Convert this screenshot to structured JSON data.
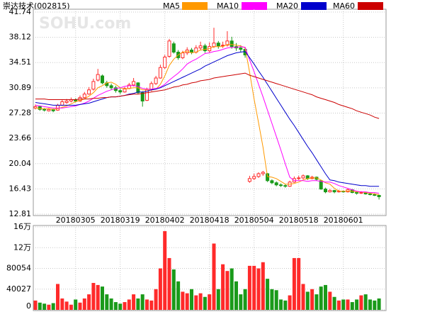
{
  "chart_data": {
    "type": "candlestick",
    "title": "崇达技术(002815)",
    "watermark": "SOHU.com",
    "up_color": "#ff2a2a",
    "down_color": "#1a9a1a",
    "grid": true,
    "categories": [
      null,
      null,
      null,
      null,
      null,
      null,
      null,
      null,
      null,
      "20180305",
      null,
      null,
      null,
      null,
      null,
      null,
      null,
      null,
      null,
      "20180319",
      null,
      null,
      null,
      null,
      null,
      null,
      null,
      null,
      null,
      "20180402",
      null,
      null,
      null,
      null,
      null,
      null,
      null,
      null,
      null,
      "20180418",
      null,
      null,
      null,
      null,
      null,
      null,
      null,
      null,
      null,
      "20180504",
      null,
      null,
      null,
      null,
      null,
      null,
      null,
      null,
      null,
      "20180518",
      null,
      null,
      null,
      null,
      null,
      null,
      null,
      null,
      null,
      "20180601",
      null,
      null,
      null,
      null,
      null,
      null,
      null,
      null
    ],
    "ylim": [
      12.81,
      41.74
    ],
    "yticks": [
      41.74,
      38.12,
      34.51,
      30.89,
      27.28,
      23.66,
      20.04,
      16.43,
      12.81
    ],
    "candles": [
      [
        28.0,
        28.5,
        27.8,
        28.2
      ],
      [
        28.2,
        28.3,
        27.6,
        27.8
      ],
      [
        27.8,
        28.0,
        27.5,
        27.7
      ],
      [
        27.6,
        28.0,
        27.5,
        27.8
      ],
      [
        27.8,
        27.9,
        27.4,
        27.6
      ],
      [
        27.7,
        28.6,
        27.6,
        28.4
      ],
      [
        28.4,
        29.2,
        28.3,
        28.9
      ],
      [
        28.8,
        29.3,
        28.6,
        29.0
      ],
      [
        29.0,
        29.5,
        28.8,
        29.2
      ],
      [
        29.2,
        29.4,
        28.8,
        29.0
      ],
      [
        29.0,
        29.8,
        28.9,
        29.5
      ],
      [
        29.5,
        30.3,
        29.4,
        30.0
      ],
      [
        30.0,
        31.0,
        29.9,
        30.6
      ],
      [
        30.7,
        32.2,
        30.5,
        31.8
      ],
      [
        32.0,
        33.6,
        31.8,
        32.8
      ],
      [
        32.6,
        32.8,
        31.4,
        31.6
      ],
      [
        31.6,
        31.9,
        30.9,
        31.2
      ],
      [
        31.2,
        31.5,
        30.6,
        30.9
      ],
      [
        30.9,
        31.2,
        30.2,
        30.5
      ],
      [
        30.5,
        30.8,
        30.0,
        30.3
      ],
      [
        30.3,
        31.0,
        30.2,
        30.8
      ],
      [
        30.8,
        31.6,
        30.7,
        31.3
      ],
      [
        31.3,
        32.3,
        31.1,
        31.8
      ],
      [
        31.6,
        31.7,
        30.0,
        30.2
      ],
      [
        30.2,
        30.4,
        28.2,
        29.0
      ],
      [
        29.1,
        30.9,
        29.0,
        30.6
      ],
      [
        30.6,
        31.8,
        30.4,
        31.5
      ],
      [
        31.5,
        32.6,
        31.3,
        32.3
      ],
      [
        32.3,
        34.2,
        32.2,
        33.8
      ],
      [
        33.8,
        35.6,
        33.6,
        35.3
      ],
      [
        35.4,
        37.9,
        35.2,
        37.6
      ],
      [
        37.2,
        37.5,
        35.8,
        36.0
      ],
      [
        36.0,
        36.3,
        34.9,
        35.2
      ],
      [
        35.2,
        36.2,
        35.0,
        35.9
      ],
      [
        35.9,
        36.7,
        35.6,
        36.3
      ],
      [
        36.3,
        36.6,
        35.7,
        36.0
      ],
      [
        36.0,
        37.0,
        35.8,
        36.6
      ],
      [
        36.6,
        37.5,
        36.3,
        36.9
      ],
      [
        36.9,
        37.2,
        35.9,
        36.2
      ],
      [
        36.2,
        37.4,
        36.0,
        36.8
      ],
      [
        36.8,
        39.5,
        36.6,
        37.3
      ],
      [
        37.3,
        37.6,
        36.5,
        36.9
      ],
      [
        36.9,
        37.5,
        36.6,
        37.0
      ],
      [
        37.0,
        39.0,
        36.8,
        37.6
      ],
      [
        37.6,
        38.2,
        36.5,
        36.8
      ],
      [
        36.8,
        37.3,
        36.2,
        36.6
      ],
      [
        36.6,
        37.0,
        36.0,
        36.4
      ],
      [
        36.4,
        36.6,
        35.2,
        35.6
      ],
      [
        17.5,
        18.3,
        17.3,
        17.9
      ],
      [
        17.9,
        18.6,
        17.7,
        18.2
      ],
      [
        18.2,
        18.8,
        18.0,
        18.6
      ],
      [
        18.6,
        19.0,
        18.3,
        18.8
      ],
      [
        18.6,
        18.7,
        17.4,
        17.6
      ],
      [
        17.6,
        17.8,
        17.1,
        17.3
      ],
      [
        17.3,
        17.5,
        16.8,
        17.0
      ],
      [
        17.0,
        17.2,
        16.7,
        16.9
      ],
      [
        16.9,
        17.1,
        16.6,
        16.8
      ],
      [
        16.8,
        17.6,
        16.7,
        17.4
      ],
      [
        17.4,
        18.2,
        17.3,
        17.9
      ],
      [
        17.9,
        18.3,
        17.7,
        18.0
      ],
      [
        18.0,
        18.5,
        17.8,
        18.3
      ],
      [
        18.3,
        18.4,
        17.7,
        17.9
      ],
      [
        17.9,
        18.3,
        17.8,
        18.1
      ],
      [
        18.1,
        18.2,
        17.6,
        17.8
      ],
      [
        17.6,
        17.7,
        16.3,
        16.4
      ],
      [
        16.4,
        16.6,
        15.8,
        16.0
      ],
      [
        16.0,
        16.4,
        15.9,
        16.2
      ],
      [
        16.2,
        16.3,
        15.8,
        16.0
      ],
      [
        16.0,
        16.3,
        15.9,
        16.1
      ],
      [
        16.1,
        16.2,
        15.9,
        16.0
      ],
      [
        16.0,
        16.5,
        15.9,
        16.3
      ],
      [
        16.3,
        16.4,
        15.8,
        15.9
      ],
      [
        15.9,
        16.0,
        15.6,
        15.8
      ],
      [
        15.8,
        16.1,
        15.7,
        15.9
      ],
      [
        15.9,
        16.0,
        15.6,
        15.7
      ],
      [
        15.7,
        15.9,
        15.5,
        15.6
      ],
      [
        15.6,
        15.8,
        15.4,
        15.5
      ],
      [
        15.5,
        15.6,
        14.9,
        15.3
      ]
    ],
    "series": [
      {
        "name": "MA5",
        "color": "#ff9900",
        "values": [
          28.0,
          27.9,
          27.9,
          27.9,
          27.8,
          27.9,
          28.1,
          28.3,
          28.6,
          28.9,
          29.1,
          29.3,
          29.7,
          30.2,
          30.9,
          31.2,
          31.6,
          31.7,
          31.4,
          30.9,
          30.7,
          30.8,
          30.9,
          30.9,
          30.6,
          30.6,
          30.6,
          30.7,
          31.4,
          32.6,
          34.1,
          35.0,
          35.6,
          36.0,
          36.1,
          35.9,
          36.0,
          36.3,
          36.4,
          36.5,
          36.8,
          36.8,
          36.8,
          37.1,
          37.1,
          37.0,
          36.9,
          36.6,
          33.1,
          29.3,
          25.9,
          22.4,
          18.2,
          18.1,
          17.9,
          17.5,
          17.1,
          17.1,
          17.2,
          17.4,
          17.7,
          17.9,
          18.0,
          18.0,
          17.7,
          17.3,
          17.1,
          16.5,
          16.1,
          16.1,
          16.1,
          16.1,
          16.0,
          16.0,
          15.9,
          15.8,
          15.7,
          15.6
        ]
      },
      {
        "name": "MA10",
        "color": "#ff00ff",
        "values": [
          28.4,
          28.3,
          28.2,
          28.1,
          28.0,
          28.0,
          28.0,
          28.1,
          28.2,
          28.3,
          28.5,
          28.7,
          29.0,
          29.4,
          29.8,
          30.1,
          30.4,
          30.6,
          30.8,
          30.9,
          31.1,
          31.2,
          31.2,
          31.1,
          30.8,
          30.7,
          30.7,
          30.8,
          31.0,
          31.4,
          32.0,
          32.5,
          33.0,
          33.6,
          34.3,
          34.7,
          35.0,
          35.4,
          35.8,
          35.9,
          36.1,
          36.2,
          36.4,
          36.6,
          36.7,
          36.7,
          36.8,
          36.7,
          34.9,
          33.2,
          31.4,
          29.6,
          27.7,
          25.8,
          23.9,
          22.0,
          20.0,
          18.1,
          17.6,
          17.6,
          17.6,
          17.5,
          17.6,
          17.6,
          17.5,
          17.4,
          17.4,
          17.2,
          16.9,
          16.7,
          16.5,
          16.3,
          16.1,
          16.0,
          16.0,
          15.9,
          15.9,
          15.8
        ]
      },
      {
        "name": "MA20",
        "color": "#0000cc",
        "values": [
          28.8,
          28.7,
          28.6,
          28.5,
          28.4,
          28.4,
          28.4,
          28.4,
          28.4,
          28.4,
          28.5,
          28.6,
          28.7,
          28.9,
          29.1,
          29.3,
          29.5,
          29.6,
          29.6,
          29.7,
          29.8,
          30.0,
          30.1,
          30.3,
          30.3,
          30.4,
          30.6,
          30.7,
          30.9,
          31.2,
          31.5,
          31.8,
          32.1,
          32.4,
          32.7,
          33.0,
          33.3,
          33.6,
          34.0,
          34.3,
          34.6,
          34.9,
          35.2,
          35.5,
          35.7,
          35.9,
          36.0,
          36.1,
          35.2,
          34.3,
          33.3,
          32.4,
          31.4,
          30.4,
          29.4,
          28.4,
          27.4,
          26.4,
          25.5,
          24.5,
          23.5,
          22.5,
          21.6,
          20.6,
          19.6,
          18.6,
          17.7,
          17.6,
          17.4,
          17.3,
          17.2,
          17.1,
          17.0,
          16.9,
          16.9,
          16.8,
          16.8,
          16.8
        ]
      },
      {
        "name": "MA60",
        "color": "#cc0000",
        "values": [
          29.3,
          29.3,
          29.3,
          29.2,
          29.2,
          29.2,
          29.2,
          29.2,
          29.2,
          29.2,
          29.3,
          29.3,
          29.3,
          29.4,
          29.4,
          29.5,
          29.5,
          29.6,
          29.6,
          29.7,
          29.8,
          29.9,
          30.0,
          30.0,
          30.1,
          30.2,
          30.3,
          30.4,
          30.5,
          30.6,
          30.8,
          31.0,
          31.1,
          31.3,
          31.4,
          31.6,
          31.7,
          31.9,
          32.0,
          32.1,
          32.3,
          32.4,
          32.5,
          32.6,
          32.7,
          32.8,
          32.9,
          33.0,
          32.7,
          32.5,
          32.3,
          32.1,
          31.9,
          31.7,
          31.5,
          31.3,
          31.1,
          30.9,
          30.7,
          30.5,
          30.3,
          30.1,
          29.9,
          29.6,
          29.4,
          29.2,
          29.0,
          28.8,
          28.5,
          28.3,
          28.1,
          27.9,
          27.6,
          27.4,
          27.2,
          27.0,
          26.7,
          26.5
        ]
      }
    ],
    "volume": [
      18000,
      14000,
      12000,
      10000,
      13000,
      50000,
      22000,
      16000,
      10000,
      20000,
      14000,
      22000,
      30000,
      52000,
      48000,
      45000,
      30000,
      22000,
      15000,
      12000,
      15000,
      20000,
      30000,
      22000,
      30000,
      20000,
      18000,
      40000,
      80000,
      152000,
      100000,
      78000,
      55000,
      35000,
      32000,
      40000,
      28000,
      32000,
      25000,
      30000,
      128000,
      40000,
      88000,
      75000,
      80000,
      55000,
      30000,
      40000,
      85000,
      85000,
      80000,
      92000,
      60000,
      40000,
      38000,
      20000,
      18000,
      28000,
      100000,
      100000,
      50000,
      35000,
      40000,
      30000,
      45000,
      48000,
      35000,
      25000,
      18000,
      20000,
      20000,
      15000,
      20000,
      28000,
      30000,
      20000,
      18000,
      22000
    ],
    "vlim": [
      0,
      160108
    ],
    "vticks": [
      {
        "value": 160108,
        "label": "16万"
      },
      {
        "value": 120081,
        "label": "12万"
      },
      80054,
      40027,
      0
    ]
  }
}
